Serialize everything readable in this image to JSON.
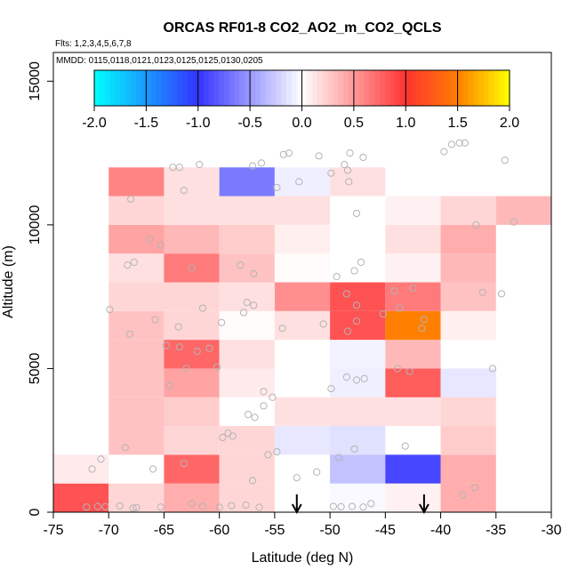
{
  "chart_data": {
    "type": "heatmap",
    "title": "ORCAS RF01-8 CO2_AO2_m_CO2_QCLS",
    "flights_note": "Flts: 1,2,3,4,5,6,7,8",
    "dates_note": "MMDD: 0115,0118,0121,0123,0125,0125,0130,0205",
    "xlabel": "Latitude (deg N)",
    "ylabel": "Altitude (m)",
    "xlim": [
      -75,
      -30
    ],
    "ylim": [
      0,
      16000
    ],
    "x_ticks": [
      -75,
      -70,
      -65,
      -60,
      -55,
      -50,
      -45,
      -40,
      -35,
      -30
    ],
    "x_tick_labels": [
      "-75",
      "-70",
      "-65",
      "-60",
      "-55",
      "-50",
      "-45",
      "-40",
      "-35",
      "-30"
    ],
    "y_ticks": [
      0,
      5000,
      10000,
      15000
    ],
    "y_tick_labels": [
      "0",
      "5000",
      "10000",
      "15000"
    ],
    "colorbar": {
      "range": [
        -2.0,
        2.0
      ],
      "ticks": [
        -2.0,
        -1.5,
        -1.0,
        -0.5,
        0.0,
        0.5,
        1.0,
        1.5,
        2.0
      ],
      "tick_labels": [
        "-2.0",
        "-1.5",
        "-1.0",
        "-0.5",
        "0.0",
        "0.5",
        "1.0",
        "1.5",
        "2.0"
      ],
      "colors": {
        "min": "#00ffff",
        "neg_mid": "#3333ff",
        "zero": "#ffffff",
        "pos_mid": "#ff3333",
        "pos_high": "#ff7f00",
        "max": "#ffff00"
      }
    },
    "bin_size": {
      "lat": 5,
      "alt": 1000
    },
    "cells": [
      {
        "lat": -75,
        "alt": 0,
        "value": 0.85
      },
      {
        "lat": -70,
        "alt": 0,
        "value": 0.2
      },
      {
        "lat": -65,
        "alt": 0,
        "value": 0.4
      },
      {
        "lat": -60,
        "alt": 0,
        "value": 0.2
      },
      {
        "lat": -50,
        "alt": 0,
        "value": -0.03
      },
      {
        "lat": -45,
        "alt": 0,
        "value": 0.07
      },
      {
        "lat": -40,
        "alt": 0,
        "value": 0.4
      },
      {
        "lat": -75,
        "alt": 1000,
        "value": 0.1
      },
      {
        "lat": -65,
        "alt": 1000,
        "value": 0.75
      },
      {
        "lat": -60,
        "alt": 1000,
        "value": 0.2
      },
      {
        "lat": -50,
        "alt": 1000,
        "value": -0.3
      },
      {
        "lat": -45,
        "alt": 1000,
        "value": -0.9
      },
      {
        "lat": -40,
        "alt": 1000,
        "value": 0.4
      },
      {
        "lat": -70,
        "alt": 2000,
        "value": 0.3
      },
      {
        "lat": -65,
        "alt": 2000,
        "value": 0.2
      },
      {
        "lat": -60,
        "alt": 2000,
        "value": 0.2
      },
      {
        "lat": -55,
        "alt": 2000,
        "value": -0.12
      },
      {
        "lat": -50,
        "alt": 2000,
        "value": -0.15
      },
      {
        "lat": -40,
        "alt": 2000,
        "value": 0.25
      },
      {
        "lat": -70,
        "alt": 3000,
        "value": 0.3
      },
      {
        "lat": -65,
        "alt": 3000,
        "value": 0.25
      },
      {
        "lat": -55,
        "alt": 3000,
        "value": 0.15
      },
      {
        "lat": -50,
        "alt": 3000,
        "value": 0.15
      },
      {
        "lat": -45,
        "alt": 3000,
        "value": 0.15
      },
      {
        "lat": -40,
        "alt": 3000,
        "value": 0.2
      },
      {
        "lat": -70,
        "alt": 4000,
        "value": 0.3
      },
      {
        "lat": -65,
        "alt": 4000,
        "value": 0.45
      },
      {
        "lat": -60,
        "alt": 4000,
        "value": 0.1
      },
      {
        "lat": -50,
        "alt": 4000,
        "value": -0.08
      },
      {
        "lat": -45,
        "alt": 4000,
        "value": 0.8
      },
      {
        "lat": -40,
        "alt": 4000,
        "value": -0.12
      },
      {
        "lat": -70,
        "alt": 5000,
        "value": 0.3
      },
      {
        "lat": -65,
        "alt": 5000,
        "value": 0.75
      },
      {
        "lat": -60,
        "alt": 5000,
        "value": 0.15
      },
      {
        "lat": -50,
        "alt": 5000,
        "value": -0.06
      },
      {
        "lat": -45,
        "alt": 5000,
        "value": 0.35
      },
      {
        "lat": -70,
        "alt": 6000,
        "value": 0.3
      },
      {
        "lat": -65,
        "alt": 6000,
        "value": 0.2
      },
      {
        "lat": -60,
        "alt": 6000,
        "value": 0.02
      },
      {
        "lat": -55,
        "alt": 6000,
        "value": 0.15
      },
      {
        "lat": -50,
        "alt": 6000,
        "value": 0.85
      },
      {
        "lat": -45,
        "alt": 6000,
        "value": 1.5
      },
      {
        "lat": -40,
        "alt": 6000,
        "value": 0.08
      },
      {
        "lat": -70,
        "alt": 7000,
        "value": 0.2
      },
      {
        "lat": -65,
        "alt": 7000,
        "value": 0.2
      },
      {
        "lat": -60,
        "alt": 7000,
        "value": 0.15
      },
      {
        "lat": -55,
        "alt": 7000,
        "value": 0.55
      },
      {
        "lat": -50,
        "alt": 7000,
        "value": 0.85
      },
      {
        "lat": -45,
        "alt": 7000,
        "value": 0.65
      },
      {
        "lat": -40,
        "alt": 7000,
        "value": 0.3
      },
      {
        "lat": -70,
        "alt": 8000,
        "value": 0.15
      },
      {
        "lat": -65,
        "alt": 8000,
        "value": 0.65
      },
      {
        "lat": -60,
        "alt": 8000,
        "value": 0.3
      },
      {
        "lat": -55,
        "alt": 8000,
        "value": 0.02
      },
      {
        "lat": -45,
        "alt": 8000,
        "value": 0.07
      },
      {
        "lat": -40,
        "alt": 8000,
        "value": 0.35
      },
      {
        "lat": -70,
        "alt": 9000,
        "value": 0.45
      },
      {
        "lat": -65,
        "alt": 9000,
        "value": 0.35
      },
      {
        "lat": -60,
        "alt": 9000,
        "value": 0.25
      },
      {
        "lat": -55,
        "alt": 9000,
        "value": 0.08
      },
      {
        "lat": -45,
        "alt": 9000,
        "value": 0.15
      },
      {
        "lat": -40,
        "alt": 9000,
        "value": 0.4
      },
      {
        "lat": -70,
        "alt": 10000,
        "value": 0.2
      },
      {
        "lat": -65,
        "alt": 10000,
        "value": 0.15
      },
      {
        "lat": -60,
        "alt": 10000,
        "value": 0.15
      },
      {
        "lat": -55,
        "alt": 10000,
        "value": 0.15
      },
      {
        "lat": -45,
        "alt": 10000,
        "value": 0.07
      },
      {
        "lat": -40,
        "alt": 10000,
        "value": 0.2
      },
      {
        "lat": -35,
        "alt": 10000,
        "value": 0.35
      },
      {
        "lat": -70,
        "alt": 11000,
        "value": 0.6
      },
      {
        "lat": -65,
        "alt": 11000,
        "value": 0.15
      },
      {
        "lat": -60,
        "alt": 11000,
        "value": -0.65
      },
      {
        "lat": -55,
        "alt": 11000,
        "value": -0.08
      },
      {
        "lat": -50,
        "alt": 11000,
        "value": 0.15
      }
    ],
    "samples": [
      {
        "lat": -71.5,
        "alt": 1500
      },
      {
        "lat": -70.7,
        "alt": 1850
      },
      {
        "lat": -72,
        "alt": 180
      },
      {
        "lat": -71,
        "alt": 200
      },
      {
        "lat": -70.3,
        "alt": 190
      },
      {
        "lat": -69,
        "alt": 220
      },
      {
        "lat": -68.5,
        "alt": 2250
      },
      {
        "lat": -67.8,
        "alt": 140
      },
      {
        "lat": -67.5,
        "alt": 160
      },
      {
        "lat": -66,
        "alt": 1500
      },
      {
        "lat": -65.3,
        "alt": 180
      },
      {
        "lat": -63.2,
        "alt": 1700
      },
      {
        "lat": -62.5,
        "alt": 300
      },
      {
        "lat": -61.5,
        "alt": 200
      },
      {
        "lat": -60,
        "alt": 170
      },
      {
        "lat": -58.9,
        "alt": 230
      },
      {
        "lat": -57.6,
        "alt": 250
      },
      {
        "lat": -57,
        "alt": 1100
      },
      {
        "lat": -56.4,
        "alt": 170
      },
      {
        "lat": -55.6,
        "alt": 2000
      },
      {
        "lat": -54.8,
        "alt": 2100
      },
      {
        "lat": -53,
        "alt": 1200
      },
      {
        "lat": -51.2,
        "alt": 1400
      },
      {
        "lat": -49.7,
        "alt": 200
      },
      {
        "lat": -49,
        "alt": 190
      },
      {
        "lat": -48,
        "alt": 200
      },
      {
        "lat": -47,
        "alt": 180
      },
      {
        "lat": -46.3,
        "alt": 300
      },
      {
        "lat": -49.2,
        "alt": 1900
      },
      {
        "lat": -47.8,
        "alt": 2200
      },
      {
        "lat": -43.2,
        "alt": 2300
      },
      {
        "lat": -38,
        "alt": 600
      },
      {
        "lat": -36.9,
        "alt": 850
      },
      {
        "lat": -59.7,
        "alt": 2600
      },
      {
        "lat": -59.2,
        "alt": 2750
      },
      {
        "lat": -58.8,
        "alt": 2650
      },
      {
        "lat": -57.4,
        "alt": 3400
      },
      {
        "lat": -56.8,
        "alt": 3300
      },
      {
        "lat": -56,
        "alt": 3700
      },
      {
        "lat": -55.2,
        "alt": 4000
      },
      {
        "lat": -56,
        "alt": 4200
      },
      {
        "lat": -49.9,
        "alt": 4300
      },
      {
        "lat": -48.5,
        "alt": 4700
      },
      {
        "lat": -47.6,
        "alt": 4600
      },
      {
        "lat": -46.9,
        "alt": 4650
      },
      {
        "lat": -42.8,
        "alt": 4900
      },
      {
        "lat": -35.3,
        "alt": 5000
      },
      {
        "lat": -43.9,
        "alt": 5000
      },
      {
        "lat": -64.5,
        "alt": 4400
      },
      {
        "lat": -63,
        "alt": 5000
      },
      {
        "lat": -62,
        "alt": 5600
      },
      {
        "lat": -60.9,
        "alt": 5700
      },
      {
        "lat": -63.6,
        "alt": 5750
      },
      {
        "lat": -64.8,
        "alt": 5800
      },
      {
        "lat": -60.2,
        "alt": 5050
      },
      {
        "lat": -54.3,
        "alt": 6400
      },
      {
        "lat": -50.6,
        "alt": 6550
      },
      {
        "lat": -48.4,
        "alt": 6300
      },
      {
        "lat": -47.6,
        "alt": 6650
      },
      {
        "lat": -45.2,
        "alt": 6900
      },
      {
        "lat": -43.7,
        "alt": 7100
      },
      {
        "lat": -41.7,
        "alt": 6400
      },
      {
        "lat": -41.5,
        "alt": 6700
      },
      {
        "lat": -68.1,
        "alt": 6200
      },
      {
        "lat": -65.8,
        "alt": 6700
      },
      {
        "lat": -63.7,
        "alt": 6450
      },
      {
        "lat": -59.8,
        "alt": 6600
      },
      {
        "lat": -57.8,
        "alt": 6950
      },
      {
        "lat": -56.9,
        "alt": 7200
      },
      {
        "lat": -57.5,
        "alt": 7300
      },
      {
        "lat": -61.5,
        "alt": 7100
      },
      {
        "lat": -69.9,
        "alt": 7050
      },
      {
        "lat": -48.5,
        "alt": 7600
      },
      {
        "lat": -47.6,
        "alt": 7200
      },
      {
        "lat": -44.2,
        "alt": 7700
      },
      {
        "lat": -42.5,
        "alt": 7800
      },
      {
        "lat": -34.5,
        "alt": 7600
      },
      {
        "lat": -68.3,
        "alt": 8600
      },
      {
        "lat": -67.7,
        "alt": 8700
      },
      {
        "lat": -62.5,
        "alt": 8500
      },
      {
        "lat": -58.1,
        "alt": 8600
      },
      {
        "lat": -56.9,
        "alt": 8300
      },
      {
        "lat": -49.4,
        "alt": 8200
      },
      {
        "lat": -47.8,
        "alt": 8400
      },
      {
        "lat": -47.2,
        "alt": 8700
      },
      {
        "lat": -36.2,
        "alt": 7650
      },
      {
        "lat": -66.3,
        "alt": 9500
      },
      {
        "lat": -65.3,
        "alt": 9300
      },
      {
        "lat": -36.8,
        "alt": 10000
      },
      {
        "lat": -33.4,
        "alt": 10100
      },
      {
        "lat": -47.6,
        "alt": 10400
      },
      {
        "lat": -68,
        "alt": 10900
      },
      {
        "lat": -63.2,
        "alt": 11200
      },
      {
        "lat": -54.8,
        "alt": 11300
      },
      {
        "lat": -52.8,
        "alt": 11500
      },
      {
        "lat": -48.3,
        "alt": 11500
      },
      {
        "lat": -49.9,
        "alt": 11800
      },
      {
        "lat": -48.4,
        "alt": 11900
      },
      {
        "lat": -64.2,
        "alt": 12000
      },
      {
        "lat": -63.6,
        "alt": 12000
      },
      {
        "lat": -61.8,
        "alt": 12100
      },
      {
        "lat": -57,
        "alt": 12050
      },
      {
        "lat": -56.2,
        "alt": 12150
      },
      {
        "lat": -54.2,
        "alt": 12450
      },
      {
        "lat": -53.7,
        "alt": 12500
      },
      {
        "lat": -51,
        "alt": 12400
      },
      {
        "lat": -48.2,
        "alt": 12500
      },
      {
        "lat": -47,
        "alt": 12350
      },
      {
        "lat": -48.7,
        "alt": 12100
      },
      {
        "lat": -39.7,
        "alt": 12550
      },
      {
        "lat": -39,
        "alt": 12800
      },
      {
        "lat": -38.3,
        "alt": 12850
      },
      {
        "lat": -37.8,
        "alt": 12850
      },
      {
        "lat": -34.2,
        "alt": 12250
      }
    ],
    "markers": [
      {
        "lat": -53,
        "type": "arrow-down"
      },
      {
        "lat": -41.5,
        "type": "arrow-down"
      }
    ]
  }
}
